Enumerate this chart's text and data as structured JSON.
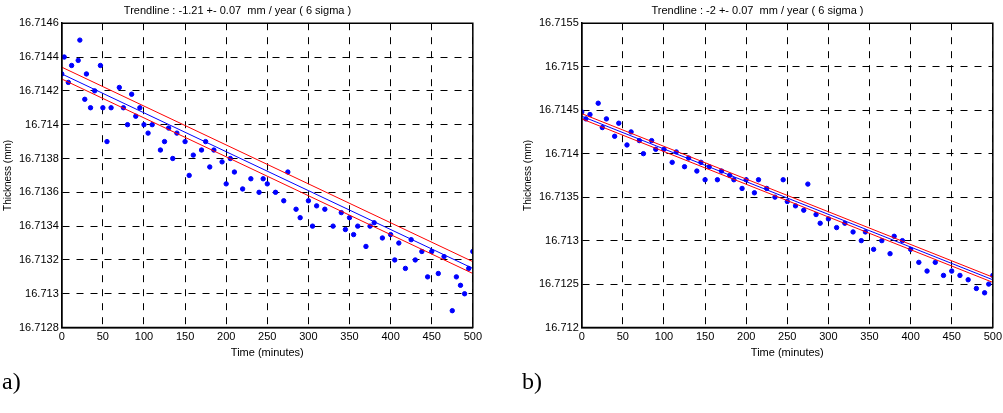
{
  "chart_data": [
    {
      "type": "scatter",
      "title": "Trendline : -1.21 +- 0.07  mm / year ( 6 sigma )",
      "xlabel": "Time (minutes)",
      "ylabel": "Thickness (mm)",
      "xlim": [
        0,
        500
      ],
      "xticks": [
        0,
        50,
        100,
        150,
        200,
        250,
        300,
        350,
        400,
        450,
        500
      ],
      "ylim": [
        16.7128,
        16.7146
      ],
      "yticks": [
        16.7128,
        16.713,
        16.7132,
        16.7134,
        16.7136,
        16.7138,
        16.714,
        16.7142,
        16.7144,
        16.7146
      ],
      "grid": true,
      "legend": false,
      "annotations": [
        "a)"
      ],
      "series": [
        {
          "type": "scatter",
          "marker": "circle",
          "color": "#0000ff",
          "x": [
            0,
            3,
            8,
            12,
            20,
            22,
            28,
            30,
            35,
            40,
            47,
            50,
            55,
            60,
            70,
            75,
            80,
            85,
            90,
            95,
            100,
            105,
            110,
            120,
            125,
            130,
            135,
            140,
            150,
            155,
            160,
            170,
            175,
            180,
            185,
            195,
            200,
            205,
            210,
            220,
            230,
            240,
            245,
            250,
            260,
            270,
            275,
            285,
            290,
            300,
            305,
            310,
            320,
            330,
            340,
            345,
            350,
            355,
            360,
            370,
            375,
            380,
            390,
            400,
            405,
            410,
            418,
            425,
            430,
            438,
            445,
            450,
            458,
            465,
            475,
            480,
            485,
            490,
            495,
            500
          ],
          "values": [
            16.7143,
            16.7144,
            16.71425,
            16.71435,
            16.71438,
            16.7145,
            16.71415,
            16.7143,
            16.7141,
            16.7142,
            16.71435,
            16.7141,
            16.7139,
            16.7141,
            16.71422,
            16.7141,
            16.714,
            16.71418,
            16.71405,
            16.7141,
            16.714,
            16.71395,
            16.714,
            16.71385,
            16.7139,
            16.71398,
            16.7138,
            16.71395,
            16.7139,
            16.7137,
            16.71382,
            16.71385,
            16.7139,
            16.71375,
            16.71385,
            16.71378,
            16.71365,
            16.7138,
            16.71372,
            16.71362,
            16.71368,
            16.7136,
            16.71368,
            16.71365,
            16.7136,
            16.71355,
            16.71372,
            16.7135,
            16.71345,
            16.71355,
            16.7134,
            16.71352,
            16.7135,
            16.7134,
            16.71348,
            16.71338,
            16.71345,
            16.71335,
            16.7134,
            16.71328,
            16.7134,
            16.71342,
            16.71333,
            16.71335,
            16.7132,
            16.7133,
            16.71315,
            16.71332,
            16.7132,
            16.71325,
            16.7131,
            16.71325,
            16.71312,
            16.71322,
            16.7129,
            16.7131,
            16.71305,
            16.713,
            16.71315,
            16.71325
          ]
        },
        {
          "type": "line",
          "color": "#0000ff",
          "x": [
            0,
            500
          ],
          "values": [
            16.7143,
            16.71315
          ]
        },
        {
          "type": "line",
          "color": "#ff0000",
          "x": [
            0,
            500
          ],
          "values": [
            16.71434,
            16.71319
          ]
        },
        {
          "type": "line",
          "color": "#ff0000",
          "x": [
            0,
            500
          ],
          "values": [
            16.71427,
            16.71312
          ]
        }
      ]
    },
    {
      "type": "scatter",
      "title": "Trendline : -2 +- 0.07  mm / year ( 6 sigma )",
      "xlabel": "Time (minutes)",
      "ylabel": "Thickness (mm)",
      "xlim": [
        0,
        500
      ],
      "xticks": [
        0,
        50,
        100,
        150,
        200,
        250,
        300,
        350,
        400,
        450,
        500
      ],
      "ylim": [
        16.712,
        16.7155
      ],
      "yticks": [
        16.712,
        16.7125,
        16.713,
        16.7135,
        16.714,
        16.7145,
        16.715,
        16.7155
      ],
      "grid": true,
      "legend": false,
      "annotations": [
        "b)"
      ],
      "series": [
        {
          "type": "scatter",
          "marker": "circle",
          "color": "#0000ff",
          "x": [
            0,
            5,
            10,
            20,
            25,
            30,
            40,
            45,
            55,
            60,
            70,
            75,
            85,
            90,
            100,
            110,
            115,
            125,
            130,
            140,
            145,
            150,
            155,
            165,
            170,
            180,
            185,
            195,
            200,
            210,
            215,
            225,
            235,
            245,
            250,
            260,
            270,
            275,
            285,
            290,
            300,
            310,
            320,
            330,
            340,
            345,
            355,
            365,
            375,
            380,
            390,
            400,
            410,
            420,
            430,
            440,
            450,
            460,
            470,
            480,
            490,
            495,
            500
          ],
          "values": [
            16.71448,
            16.7144,
            16.71445,
            16.71458,
            16.7143,
            16.7144,
            16.7142,
            16.71435,
            16.7141,
            16.71425,
            16.71415,
            16.714,
            16.71415,
            16.71405,
            16.71405,
            16.7139,
            16.71402,
            16.71385,
            16.71395,
            16.7138,
            16.7139,
            16.7137,
            16.71385,
            16.7137,
            16.7138,
            16.71375,
            16.7137,
            16.7136,
            16.7137,
            16.71355,
            16.7137,
            16.7136,
            16.7135,
            16.7137,
            16.71345,
            16.7134,
            16.71335,
            16.71365,
            16.7133,
            16.7132,
            16.71325,
            16.71315,
            16.7132,
            16.7131,
            16.713,
            16.7131,
            16.7129,
            16.713,
            16.71285,
            16.71305,
            16.713,
            16.7129,
            16.71275,
            16.71265,
            16.71275,
            16.7126,
            16.71265,
            16.7126,
            16.71255,
            16.71245,
            16.7124,
            16.7125,
            16.7126
          ]
        },
        {
          "type": "line",
          "color": "#0000ff",
          "x": [
            0,
            500
          ],
          "values": [
            16.71443,
            16.71255
          ]
        },
        {
          "type": "line",
          "color": "#ff0000",
          "x": [
            0,
            500
          ],
          "values": [
            16.71446,
            16.71258
          ]
        },
        {
          "type": "line",
          "color": "#ff0000",
          "x": [
            0,
            500
          ],
          "values": [
            16.7144,
            16.71252
          ]
        }
      ]
    }
  ]
}
